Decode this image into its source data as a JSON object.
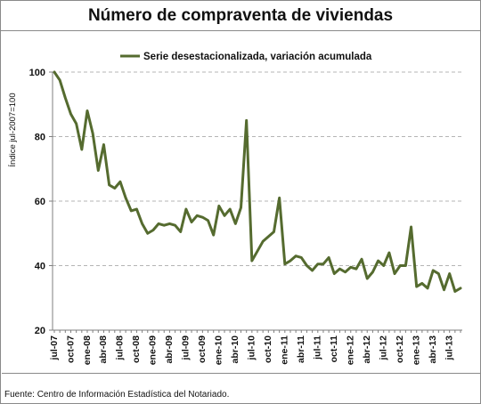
{
  "chart_data": {
    "type": "line",
    "title": "Número de compraventa de viviendas",
    "ylabel": "Índice jul-2007=100",
    "xlabel": "",
    "ylim": [
      20,
      100
    ],
    "yticks": [
      20,
      40,
      60,
      80,
      100
    ],
    "grid": true,
    "legend_position": "top",
    "x": [
      "jul-07",
      "ago-07",
      "sep-07",
      "oct-07",
      "nov-07",
      "dic-07",
      "ene-08",
      "feb-08",
      "mar-08",
      "abr-08",
      "may-08",
      "jun-08",
      "jul-08",
      "ago-08",
      "sep-08",
      "oct-08",
      "nov-08",
      "dic-08",
      "ene-09",
      "feb-09",
      "mar-09",
      "abr-09",
      "may-09",
      "jun-09",
      "jul-09",
      "ago-09",
      "sep-09",
      "oct-09",
      "nov-09",
      "dic-09",
      "ene-10",
      "feb-10",
      "mar-10",
      "abr-10",
      "may-10",
      "jun-10",
      "jul-10",
      "ago-10",
      "sep-10",
      "oct-10",
      "nov-10",
      "dic-10",
      "ene-11",
      "feb-11",
      "mar-11",
      "abr-11",
      "may-11",
      "jun-11",
      "jul-11",
      "ago-11",
      "sep-11",
      "oct-11",
      "nov-11",
      "dic-11",
      "ene-12",
      "feb-12",
      "mar-12",
      "abr-12",
      "may-12",
      "jun-12",
      "jul-12",
      "ago-12",
      "sep-12",
      "oct-12",
      "nov-12",
      "dic-12",
      "ene-13",
      "feb-13",
      "mar-13",
      "abr-13",
      "may-13",
      "jun-13",
      "jul-13",
      "ago-13",
      "sep-13"
    ],
    "tick_labels": [
      "jul-07",
      "oct-07",
      "ene-08",
      "abr-08",
      "jul-08",
      "oct-08",
      "ene-09",
      "abr-09",
      "jul-09",
      "oct-09",
      "ene-10",
      "abr-10",
      "jul-10",
      "oct-10",
      "ene-11",
      "abr-11",
      "jul-11",
      "oct-11",
      "ene-12",
      "abr-12",
      "jul-12",
      "oct-12",
      "ene-13",
      "abr-13",
      "jul-13"
    ],
    "series": [
      {
        "name": "Serie desestacionalizada, variación acumulada",
        "color": "#556b2f",
        "values": [
          100,
          97.5,
          92,
          87,
          84,
          76,
          88,
          81,
          69.5,
          77.5,
          65,
          64,
          66,
          61,
          57,
          57.5,
          53,
          50,
          51,
          53,
          52.5,
          53,
          52.5,
          50.5,
          57.5,
          53.5,
          55.5,
          55,
          54,
          49.5,
          58.5,
          55.5,
          57.5,
          53,
          58,
          85,
          41.5,
          44.5,
          47.5,
          49,
          50.5,
          61,
          40.5,
          41.5,
          43,
          42.5,
          40,
          38.5,
          40.5,
          40.5,
          42.5,
          37.5,
          39,
          38,
          39.5,
          39,
          42,
          36,
          38,
          41.5,
          40,
          44,
          37.5,
          40,
          40,
          52,
          33.5,
          34.5,
          33,
          38.5,
          37.5,
          32.5,
          37.5,
          32,
          33
        ]
      }
    ]
  },
  "source_text": "Fuente: Centro de Información Estadística del Notariado."
}
